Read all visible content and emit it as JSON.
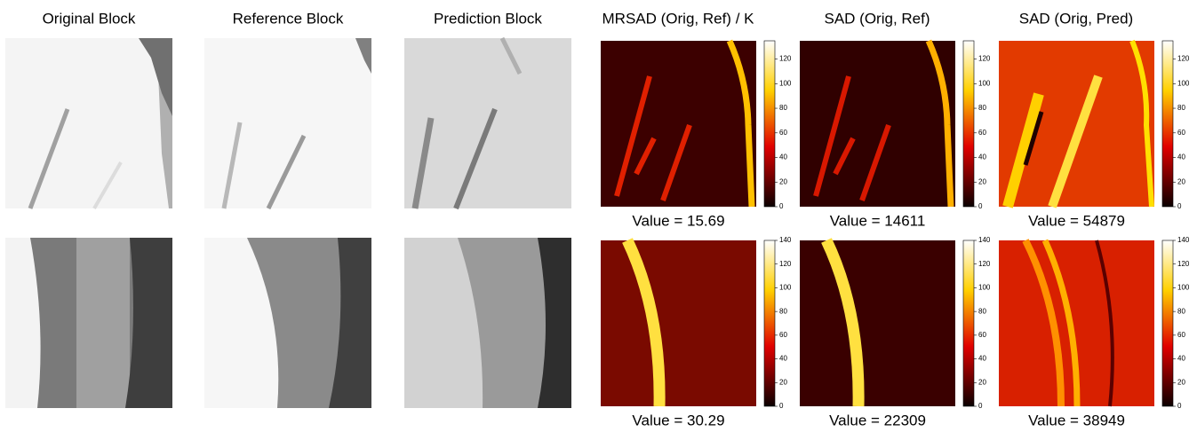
{
  "columns": [
    "Original Block",
    "Reference Block",
    "Prediction Block",
    "MRSAD (Orig, Ref) / K",
    "SAD (Orig, Ref)",
    "SAD (Orig, Pred)"
  ],
  "rows": [
    {
      "values": [
        "Value = 15.69",
        "Value = 14611",
        "Value = 54879"
      ],
      "colorbar_ticks": [
        0,
        20,
        40,
        60,
        80,
        100,
        120
      ]
    },
    {
      "values": [
        "Value = 30.29",
        "Value = 22309",
        "Value = 38949"
      ],
      "colorbar_ticks": [
        0,
        20,
        40,
        60,
        80,
        100,
        120,
        140
      ]
    }
  ]
}
